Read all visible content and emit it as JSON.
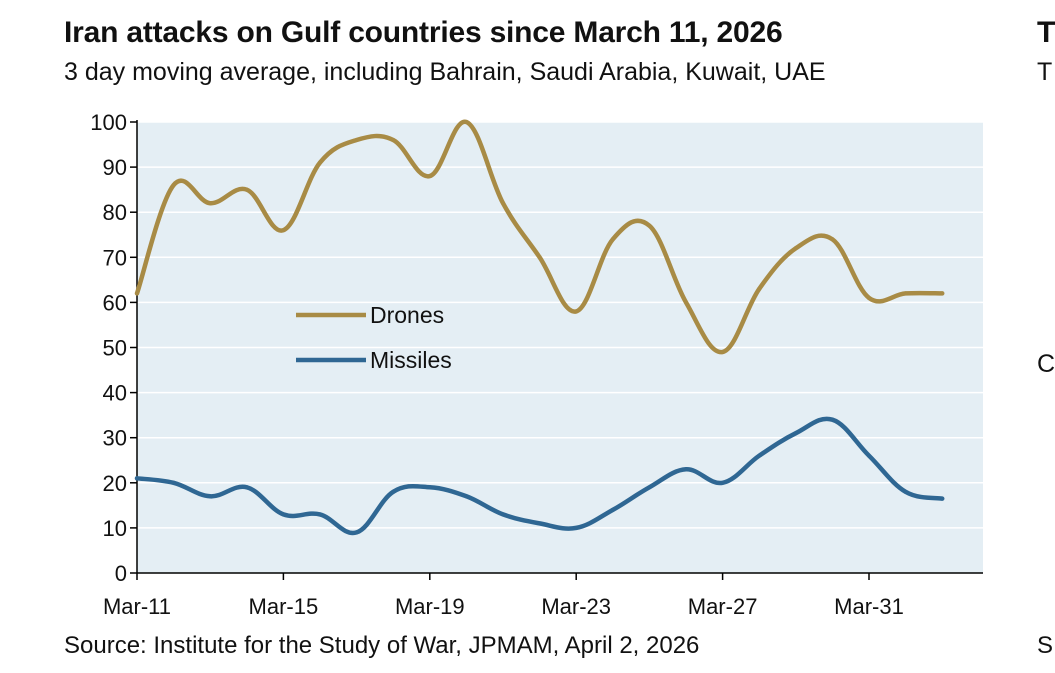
{
  "title": "Iran attacks on Gulf countries since March 11, 2026",
  "subtitle": "3 day moving average, including Bahrain, Saudi Arabia, Kuwait, UAE",
  "source": "Source: Institute for the Study of War, JPMAM, April 2, 2026",
  "edge_fragments": {
    "title": "T",
    "subtitle": "T",
    "middle": "C",
    "bottom": "S"
  },
  "colors": {
    "drones": "#A88B45",
    "missiles": "#2F6793",
    "plot_background": "#E4EEF4",
    "gridline": "#FFFFFF",
    "axis": "#000000"
  },
  "chart_data": {
    "type": "line",
    "title": "Iran attacks on Gulf countries since March 11, 2026",
    "subtitle": "3 day moving average, including Bahrain, Saudi Arabia, Kuwait, UAE",
    "xlabel": "",
    "ylabel": "",
    "x": [
      "Mar-11",
      "Mar-12",
      "Mar-13",
      "Mar-14",
      "Mar-15",
      "Mar-16",
      "Mar-17",
      "Mar-18",
      "Mar-19",
      "Mar-20",
      "Mar-21",
      "Mar-22",
      "Mar-23",
      "Mar-24",
      "Mar-25",
      "Mar-26",
      "Mar-27",
      "Mar-28",
      "Mar-29",
      "Mar-30",
      "Mar-31",
      "Apr-01",
      "Apr-02"
    ],
    "x_tick_labels": [
      "Mar-11",
      "Mar-15",
      "Mar-19",
      "Mar-23",
      "Mar-27",
      "Mar-31"
    ],
    "ylim": [
      0,
      100
    ],
    "y_ticks": [
      0,
      10,
      20,
      30,
      40,
      50,
      60,
      70,
      80,
      90,
      100
    ],
    "grid": true,
    "legend_position": "center-left",
    "series": [
      {
        "name": "Drones",
        "values": [
          62,
          86,
          82,
          85,
          76,
          91,
          96,
          96,
          88,
          100,
          82,
          70,
          58,
          74,
          77,
          60,
          49,
          63,
          72,
          74,
          61,
          62,
          62
        ]
      },
      {
        "name": "Missiles",
        "values": [
          21,
          20,
          17,
          19,
          13,
          13,
          9,
          18,
          19,
          17,
          13,
          11,
          10,
          14,
          19,
          23,
          20,
          26,
          31,
          34,
          26,
          18,
          16.5
        ]
      }
    ]
  }
}
